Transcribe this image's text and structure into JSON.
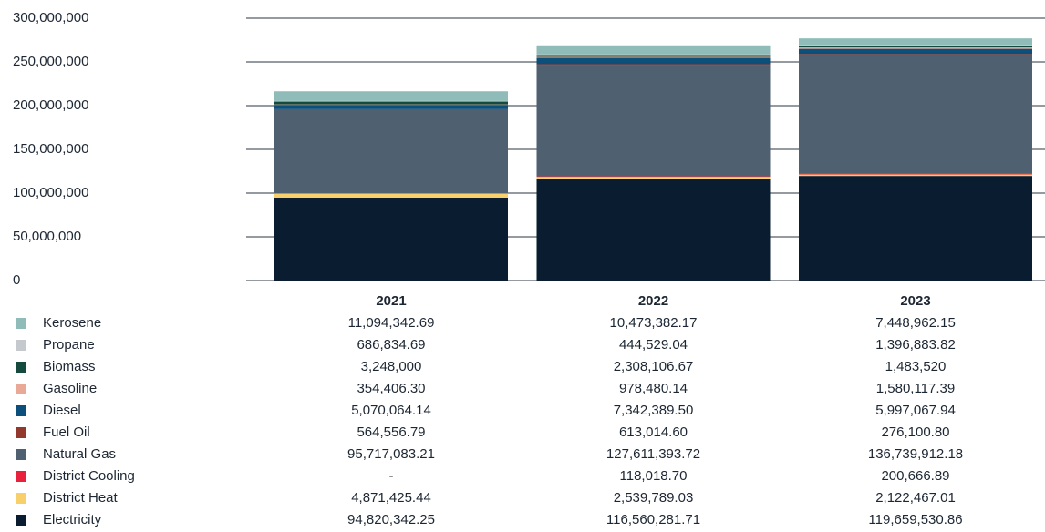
{
  "chart_data": {
    "type": "bar",
    "stacked": true,
    "categories": [
      "2021",
      "2022",
      "2023"
    ],
    "ylim": [
      0,
      300000000
    ],
    "y_ticks": [
      "300,000,000",
      "250,000,000",
      "200,000,000",
      "150,000,000",
      "100,000,000",
      "50,000,000",
      "0"
    ],
    "grid": true,
    "legend": "table-below",
    "series": [
      {
        "name": "Kerosene",
        "color": "#8fbcb8",
        "values": [
          11094342.69,
          10473382.17,
          7448962.15
        ],
        "labels": [
          "11,094,342.69",
          "10,473,382.17",
          "7,448,962.15"
        ]
      },
      {
        "name": "Propane",
        "color": "#c5c9cd",
        "values": [
          686834.69,
          444529.04,
          1396883.82
        ],
        "labels": [
          "686,834.69",
          "444,529.04",
          "1,396,883.82"
        ]
      },
      {
        "name": "Biomass",
        "color": "#154a3e",
        "values": [
          3248000,
          2308106.67,
          1483520
        ],
        "labels": [
          "3,248,000",
          "2,308,106.67",
          "1,483,520"
        ]
      },
      {
        "name": "Gasoline",
        "color": "#e8aa96",
        "values": [
          354406.3,
          978480.14,
          1580117.39
        ],
        "labels": [
          "354,406.30",
          "978,480.14",
          "1,580,117.39"
        ]
      },
      {
        "name": "Diesel",
        "color": "#0c4f7a",
        "values": [
          5070064.14,
          7342389.5,
          5997067.94
        ],
        "labels": [
          "5,070,064.14",
          "7,342,389.50",
          "5,997,067.94"
        ]
      },
      {
        "name": "Fuel Oil",
        "color": "#93382c",
        "values": [
          564556.79,
          613014.6,
          276100.8
        ],
        "labels": [
          "564,556.79",
          "613,014.60",
          "276,100.80"
        ]
      },
      {
        "name": "Natural Gas",
        "color": "#4f6070",
        "values": [
          95717083.21,
          127611393.72,
          136739912.18
        ],
        "labels": [
          "95,717,083.21",
          "127,611,393.72",
          "136,739,912.18"
        ]
      },
      {
        "name": "District Cooling",
        "color": "#e8223d",
        "values": [
          0,
          118018.7,
          200666.89
        ],
        "labels": [
          "-",
          "118,018.70",
          "200,666.89"
        ]
      },
      {
        "name": "District Heat",
        "color": "#f7cf6b",
        "values": [
          4871425.44,
          2539789.03,
          2122467.01
        ],
        "labels": [
          "4,871,425.44",
          "2,539,789.03",
          "2,122,467.01"
        ]
      },
      {
        "name": "Electricity",
        "color": "#0a1c2f",
        "values": [
          94820342.25,
          116560281.71,
          119659530.86
        ],
        "labels": [
          "94,820,342.25",
          "116,560,281.71",
          "119,659,530.86"
        ]
      }
    ]
  }
}
